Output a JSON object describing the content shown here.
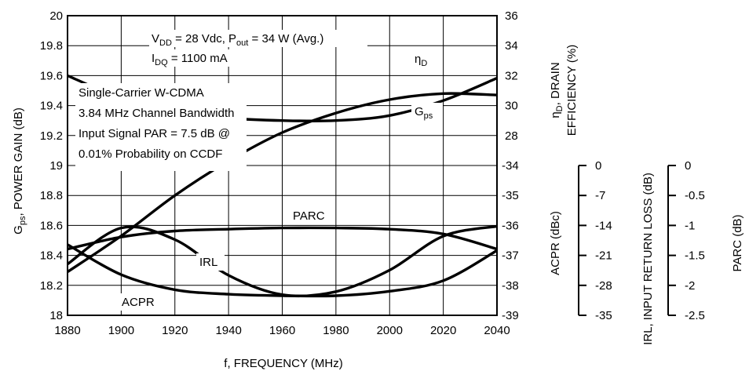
{
  "chart_data": {
    "type": "line",
    "x_axis": {
      "label": "f, FREQUENCY (MHz)",
      "range": [
        1880,
        2040
      ],
      "ticks": [
        1880,
        1900,
        1920,
        1940,
        1960,
        1980,
        2000,
        2020,
        2040
      ]
    },
    "left_axis": {
      "label_main": "G",
      "label_sub": "ps",
      "label_rest": ", POWER GAIN (dB)",
      "range": [
        18,
        20
      ],
      "ticks": [
        "18",
        "18.2",
        "18.4",
        "18.6",
        "18.8",
        "19",
        "19.2",
        "19.4",
        "19.6",
        "19.8",
        "20"
      ]
    },
    "drain_axis": {
      "label_line1_main": "η",
      "label_line1_sub": "D",
      "label_line1_rest": ", DRAIN",
      "label_line2": "EFFICIENCY (%)",
      "range": [
        24,
        36
      ],
      "ticks": [
        "36",
        "34",
        "32",
        "30",
        "28"
      ]
    },
    "acpr_axis": {
      "label": "ACPR (dBc)",
      "range": [
        -39,
        -34
      ],
      "ticks": [
        "-34",
        "-35",
        "-36",
        "-37",
        "-38",
        "-39"
      ]
    },
    "irl_axis": {
      "label": "IRL, INPUT RETURN LOSS (dB)",
      "range": [
        -35,
        0
      ],
      "ticks": [
        "0",
        "-7",
        "-14",
        "-21",
        "-28",
        "-35"
      ]
    },
    "parc_axis": {
      "label": "PARC (dB)",
      "range": [
        -2.5,
        0
      ],
      "ticks": [
        "0",
        "-0.5",
        "-1",
        "-1.5",
        "-2",
        "-2.5"
      ]
    },
    "annotations": {
      "cond1_a": "V",
      "cond1_a_sub": "DD",
      "cond1_b": " = 28 Vdc, P",
      "cond1_b_sub": "out",
      "cond1_c": " = 34 W (Avg.)",
      "cond2_a": "I",
      "cond2_a_sub": "DQ",
      "cond2_b": " = 1100 mA",
      "sig1": "Single-Carrier W-CDMA",
      "sig2": "3.84 MHz Channel Bandwidth",
      "sig3": "Input Signal PAR = 7.5 dB @",
      "sig4": "0.01% Probability on CCDF"
    },
    "series": [
      {
        "name": "ηD",
        "label_main": "η",
        "label_sub": "D",
        "axis": "drain",
        "x": [
          1880,
          1900,
          1920,
          1940,
          1960,
          1980,
          2000,
          2020,
          2040
        ],
        "y": [
          33.6,
          32.7,
          32.2,
          31.9,
          31.8,
          31.8,
          32.0,
          32.6,
          33.5
        ]
      },
      {
        "name": "Gps",
        "label_main": "G",
        "label_sub": "ps",
        "axis": "gain",
        "x": [
          1880,
          1900,
          1920,
          1940,
          1960,
          1980,
          2000,
          2020,
          2040
        ],
        "y": [
          18.29,
          18.53,
          18.8,
          19.03,
          19.22,
          19.35,
          19.44,
          19.48,
          19.47
        ]
      },
      {
        "name": "PARC",
        "label_main": "PARC",
        "label_sub": "",
        "axis": "parc",
        "x": [
          1880,
          1900,
          1920,
          1940,
          1960,
          1980,
          2000,
          2020,
          2040
        ],
        "y": [
          -1.4,
          -1.2,
          -1.1,
          -1.07,
          -1.05,
          -1.05,
          -1.07,
          -1.15,
          -1.4
        ]
      },
      {
        "name": "IRL",
        "label_main": "IRL",
        "label_sub": "",
        "axis": "irl",
        "x": [
          1880,
          1900,
          1920,
          1940,
          1960,
          1980,
          2000,
          2020,
          2040
        ],
        "y": [
          -23.1,
          -14.7,
          -17.4,
          -25.7,
          -30.2,
          -29.5,
          -24.5,
          -16.6,
          -14.3
        ]
      },
      {
        "name": "ACPR",
        "label_main": "ACPR",
        "label_sub": "",
        "axis": "acpr",
        "x": [
          1880,
          1900,
          1920,
          1940,
          1960,
          1980,
          2000,
          2020,
          2040
        ],
        "y": [
          -36.65,
          -37.65,
          -38.15,
          -38.3,
          -38.35,
          -38.35,
          -38.2,
          -37.85,
          -36.85
        ]
      }
    ]
  }
}
